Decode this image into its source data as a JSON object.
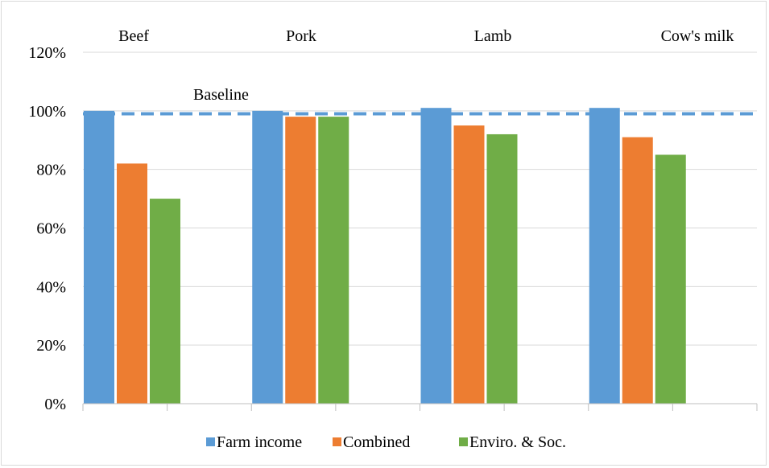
{
  "chart_data": {
    "type": "bar",
    "categories": [
      "Beef",
      "Pork",
      "Lamb",
      "Cow's milk"
    ],
    "series": [
      {
        "name": "Farm income",
        "color": "#5b9bd5",
        "values": [
          1.0,
          1.0,
          1.01,
          1.01
        ]
      },
      {
        "name": "Combined",
        "color": "#ed7d31",
        "values": [
          0.82,
          0.98,
          0.95,
          0.91
        ]
      },
      {
        "name": "Enviro. & Soc.",
        "color": "#70ad47",
        "values": [
          0.7,
          0.98,
          0.92,
          0.85
        ]
      }
    ],
    "baseline": {
      "label": "Baseline",
      "value": 0.99,
      "color": "#5b9bd5",
      "style": "dashed"
    },
    "ylim": [
      0,
      1.2
    ],
    "yticks": [
      0,
      0.2,
      0.4,
      0.6,
      0.8,
      1.0,
      1.2
    ],
    "ytick_labels": [
      "0%",
      "20%",
      "40%",
      "60%",
      "80%",
      "100%",
      "120%"
    ],
    "category_label_position": "top",
    "legend": {
      "position": "bottom"
    },
    "grid": true,
    "grid_color": "#d9d9d9"
  }
}
